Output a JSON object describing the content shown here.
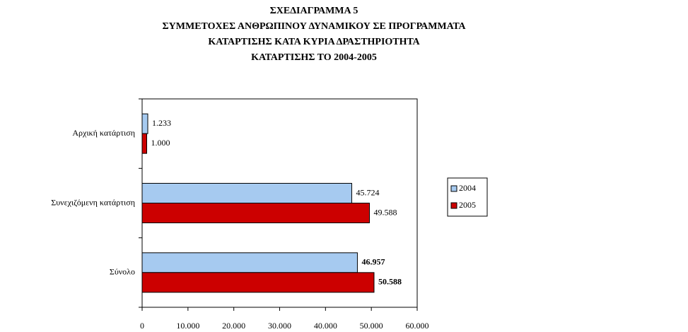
{
  "chart_data": {
    "type": "hbar",
    "title": [
      "ΣΧΕΔΙΑΓΡΑΜΜΑ 5",
      "ΣΥΜΜΕΤΟΧΕΣ ΑΝΘΡΩΠΙΝΟΥ ΔΥΝΑΜΙΚΟΥ ΣΕ ΠΡΟΓΡΑΜΜΑΤΑ",
      "ΚΑΤΑΡΤΙΣΗΣ ΚΑΤΑ ΚΥΡΙΑ ΔΡΑΣΤΗΡΙΟΤΗΤΑ",
      "ΚΑΤΑΡΤΙΣΗΣ ΤΟ 2004-2005"
    ],
    "categories": [
      "Αρχική κατάρτιση",
      "Συνεχιζόμενη κατάρτιση",
      "Σύνολο"
    ],
    "series": [
      {
        "name": "2004",
        "color": "#a6caf0",
        "values": [
          1233,
          45724,
          46957
        ],
        "value_labels": [
          "1.233",
          "45.724",
          "46.957"
        ]
      },
      {
        "name": "2005",
        "color": "#cc0000",
        "values": [
          1000,
          49588,
          50588
        ],
        "value_labels": [
          "1.000",
          "49.588",
          "50.588"
        ]
      }
    ],
    "xlim": [
      0,
      60000
    ],
    "xticks": [
      0,
      {
        "value": 10000,
        "label": "10.000"
      },
      {
        "value": 20000,
        "label": "20.000"
      },
      {
        "value": 30000,
        "label": "30.000"
      },
      {
        "value": 40000,
        "label": "40.000"
      },
      {
        "value": 50000,
        "label": "50.000"
      },
      {
        "value": 60000,
        "label": "60.000"
      }
    ],
    "legend": "right"
  }
}
